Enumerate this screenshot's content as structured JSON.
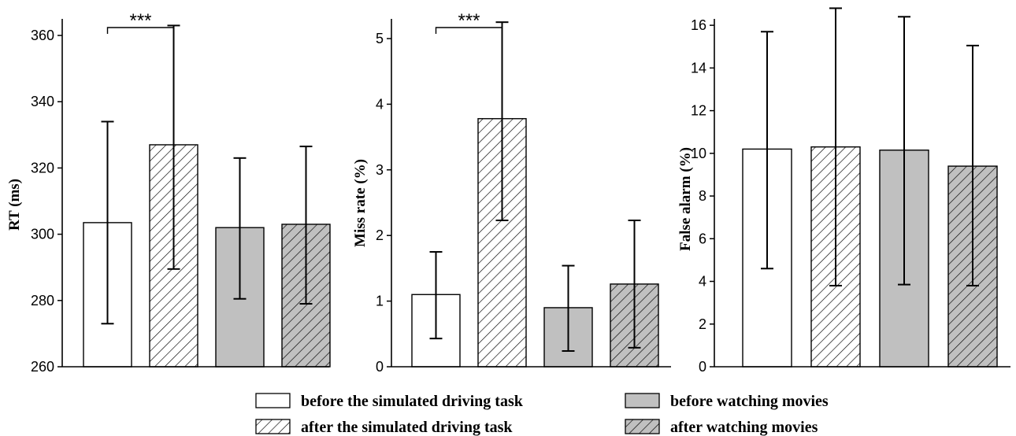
{
  "chart_data": [
    {
      "type": "bar",
      "ylabel": "RT  (ms)",
      "ylim": [
        260,
        365
      ],
      "yticks": [
        260,
        280,
        300,
        320,
        340,
        360
      ],
      "categories": [
        "before the simulated driving task",
        "after the simulated driving task",
        "before watching movies",
        "after watching movies"
      ],
      "values": [
        303.5,
        327,
        302,
        303
      ],
      "error_low": [
        273,
        289.5,
        280.5,
        279
      ],
      "error_high": [
        334,
        363,
        323,
        326.5
      ],
      "significance": {
        "label": "***",
        "between": [
          0,
          1
        ]
      }
    },
    {
      "type": "bar",
      "ylabel": "Miss rate (%)",
      "ylim": [
        0,
        5.3
      ],
      "yticks": [
        0,
        1,
        2,
        3,
        4,
        5
      ],
      "categories": [
        "before the simulated driving task",
        "after the simulated driving task",
        "before watching movies",
        "after watching movies"
      ],
      "values": [
        1.1,
        3.78,
        0.9,
        1.26
      ],
      "error_low": [
        0.43,
        2.23,
        0.24,
        0.29
      ],
      "error_high": [
        1.75,
        5.25,
        1.54,
        2.23
      ],
      "significance": {
        "label": "***",
        "between": [
          0,
          1
        ]
      }
    },
    {
      "type": "bar",
      "ylabel": "False alarm (%)",
      "ylim": [
        0,
        16.3
      ],
      "yticks": [
        0,
        2,
        4,
        6,
        8,
        10,
        12,
        14,
        16
      ],
      "categories": [
        "before the simulated driving task",
        "after the simulated driving task",
        "before watching movies",
        "after watching movies"
      ],
      "values": [
        10.2,
        10.3,
        10.15,
        9.4
      ],
      "error_low": [
        4.6,
        3.8,
        3.85,
        3.8
      ],
      "error_high": [
        15.7,
        16.8,
        16.4,
        15.05
      ]
    }
  ],
  "legend": [
    {
      "label": "before the simulated driving task",
      "fill": "white",
      "hatch": false
    },
    {
      "label": "after the simulated driving task",
      "fill": "white",
      "hatch": true
    },
    {
      "label": "before watching movies",
      "fill": "gray",
      "hatch": false
    },
    {
      "label": "after watching movies",
      "fill": "gray",
      "hatch": true
    }
  ],
  "colors": {
    "gray": "#c0c0c0",
    "white": "#ffffff",
    "ink": "#000000"
  }
}
